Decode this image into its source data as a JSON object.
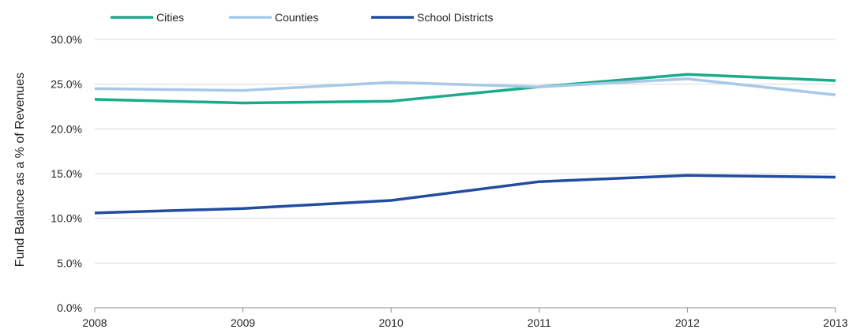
{
  "chart_data": {
    "type": "line",
    "x": [
      "2008",
      "2009",
      "2010",
      "2011",
      "2012",
      "2013"
    ],
    "ylabel": "Fund Balance as a % of Revenues",
    "ylim": [
      0,
      30
    ],
    "yticks": [
      "0.0%",
      "5.0%",
      "10.0%",
      "15.0%",
      "20.0%",
      "25.0%",
      "30.0%"
    ],
    "ytick_values": [
      0,
      5,
      10,
      15,
      20,
      25,
      30
    ],
    "grid": true,
    "legend_position": "top-left",
    "series": [
      {
        "name": "Cities",
        "color": "#1aab8a",
        "values": [
          23.3,
          22.9,
          23.1,
          24.7,
          26.1,
          25.4
        ]
      },
      {
        "name": "Counties",
        "color": "#a7c9e8",
        "values": [
          24.5,
          24.3,
          25.2,
          24.7,
          25.6,
          23.8
        ]
      },
      {
        "name": "School Districts",
        "color": "#214c9f",
        "values": [
          10.6,
          11.1,
          12.0,
          14.1,
          14.8,
          14.6
        ]
      }
    ]
  }
}
